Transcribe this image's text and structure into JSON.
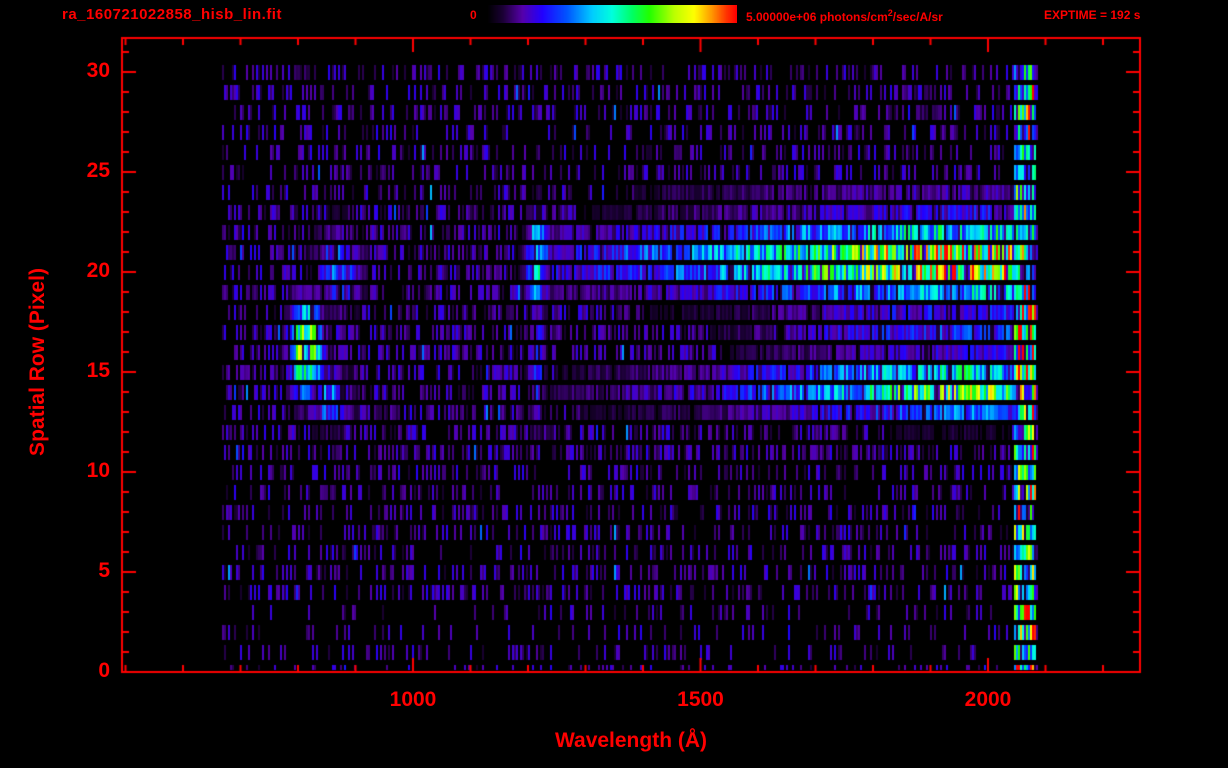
{
  "window": {
    "background": "#000000",
    "accent": "#ff0000"
  },
  "header": {
    "filename": "ra_160721022858_hisb_lin.fit",
    "exptime": "EXPTIME = 192 s",
    "colorbar": {
      "min_label": "0",
      "max_prefix": "5.00000e+06 photons/cm",
      "max_sup": "2",
      "max_suffix": "/sec/A/sr"
    }
  },
  "chart_data": {
    "type": "heatmap",
    "title": "ra_160721022858_hisb_lin.fit",
    "xlabel": "Wavelength (Å)",
    "ylabel": "Spatial Row (Pixel)",
    "xlim": [
      500,
      2250
    ],
    "ylim": [
      0,
      31.5
    ],
    "x_ticks": [
      1000,
      1500,
      2000
    ],
    "x_minor_step": 100,
    "y_ticks": [
      0,
      5,
      10,
      15,
      20,
      25,
      30
    ],
    "y_minor_step": 1,
    "rows": 31,
    "wavelength_range_A": [
      668,
      2085
    ],
    "colorbar": {
      "min": 0,
      "max": 5000000,
      "units": "photons/cm2/sec/A/sr",
      "colormap": "rainbow"
    },
    "exposure_time_s": 192,
    "colormap_stops": [
      [
        0.0,
        "#000000"
      ],
      [
        0.06,
        "#1a0033"
      ],
      [
        0.14,
        "#5500aa"
      ],
      [
        0.22,
        "#2200ff"
      ],
      [
        0.32,
        "#0055ff"
      ],
      [
        0.42,
        "#00ccff"
      ],
      [
        0.5,
        "#00ffdd"
      ],
      [
        0.58,
        "#00ff66"
      ],
      [
        0.65,
        "#22ff00"
      ],
      [
        0.75,
        "#bbff00"
      ],
      [
        0.83,
        "#ffff00"
      ],
      [
        0.9,
        "#ff9900"
      ],
      [
        0.96,
        "#ff3300"
      ],
      [
        1.0,
        "#ff0000"
      ]
    ],
    "noise": {
      "mid_row_range": [
        11,
        23
      ],
      "mid_density": 0.5,
      "low_row_range": [
        0,
        3
      ],
      "low_density": 0.18,
      "default_density": 0.33,
      "amp_min": 0.05,
      "amp_max": 0.21
    },
    "features": [
      {
        "name": "upper-continuum-band",
        "row_center": 20.6,
        "row_sigma": 1.35,
        "profile": [
          [
            1150,
            0
          ],
          [
            1250,
            0.2
          ],
          [
            1400,
            0.28
          ],
          [
            1550,
            0.4
          ],
          [
            1650,
            0.5
          ],
          [
            1750,
            0.62
          ],
          [
            1850,
            0.72
          ],
          [
            1950,
            0.8
          ],
          [
            2030,
            0.78
          ],
          [
            2055,
            0.55
          ],
          [
            2070,
            0
          ]
        ]
      },
      {
        "name": "lower-continuum-band",
        "row_center": 14.2,
        "row_sigma": 1.0,
        "profile": [
          [
            1150,
            0
          ],
          [
            1300,
            0.1
          ],
          [
            1500,
            0.17
          ],
          [
            1650,
            0.3
          ],
          [
            1750,
            0.42
          ],
          [
            1850,
            0.55
          ],
          [
            1950,
            0.63
          ],
          [
            2030,
            0.6
          ],
          [
            2055,
            0.38
          ],
          [
            2070,
            0
          ]
        ]
      },
      {
        "name": "inter-band-scatter",
        "row_center": 17.2,
        "row_sigma": 1.3,
        "profile": [
          [
            1450,
            0
          ],
          [
            1650,
            0.14
          ],
          [
            1850,
            0.24
          ],
          [
            2040,
            0.28
          ],
          [
            2062,
            0
          ]
        ]
      },
      {
        "name": "row23-faint-band",
        "row_center": 23.3,
        "row_sigma": 0.8,
        "profile": [
          [
            1250,
            0
          ],
          [
            1450,
            0.1
          ],
          [
            1700,
            0.16
          ],
          [
            2000,
            0.22
          ],
          [
            2050,
            0.12
          ],
          [
            2065,
            0
          ]
        ]
      },
      {
        "name": "lyman-alpha-emission-upper",
        "type": "blob",
        "wavelength_center": 1215,
        "wavelength_sigma": 13,
        "row_center": 20.6,
        "row_sigma": 1.6,
        "amplitude": 0.55
      },
      {
        "name": "lyman-alpha-emission-lower",
        "type": "blob",
        "wavelength_center": 1213,
        "wavelength_sigma": 11,
        "row_center": 15.5,
        "row_sigma": 2.3,
        "amplitude": 0.26
      },
      {
        "name": "short-wavelength-emission-arc",
        "type": "blob",
        "wavelength_center": 812,
        "wavelength_sigma": 20,
        "row_center": 16.2,
        "row_sigma": 1.6,
        "amplitude": 0.72
      },
      {
        "name": "arc-extension-lower",
        "type": "blob",
        "wavelength_center": 852,
        "wavelength_sigma": 26,
        "row_center": 13.7,
        "row_sigma": 1.0,
        "amplitude": 0.34
      },
      {
        "name": "arc-extension-upper",
        "type": "blob",
        "wavelength_center": 868,
        "wavelength_sigma": 30,
        "row_center": 20.2,
        "row_sigma": 1.5,
        "amplitude": 0.3
      },
      {
        "name": "detector-edge-column",
        "type": "edge",
        "wavelength_min": 2042,
        "wavelength_max": 2080,
        "amplitude": 0.5
      }
    ]
  }
}
